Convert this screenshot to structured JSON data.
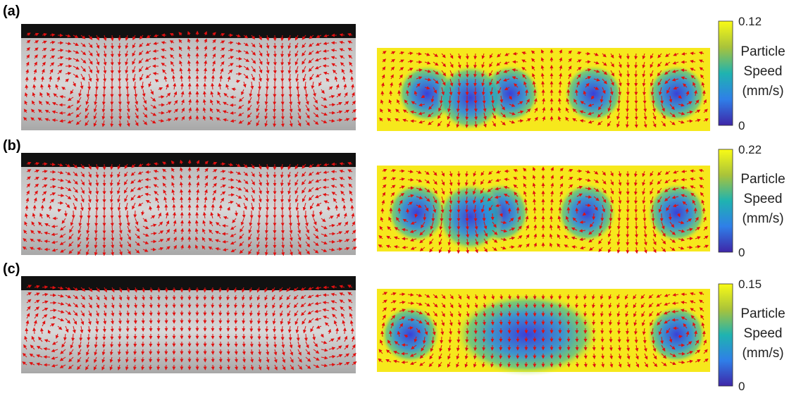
{
  "panels": [
    {
      "label": "(a)",
      "colorbar": {
        "max": 0.12,
        "min": 0,
        "title": [
          "Particle",
          "Speed",
          "(mm/s)"
        ]
      }
    },
    {
      "label": "(b)",
      "colorbar": {
        "max": 0.22,
        "min": 0,
        "title": [
          "Particle",
          "Speed",
          "(mm/s)"
        ]
      }
    },
    {
      "label": "(c)",
      "colorbar": {
        "max": 0.15,
        "min": 0,
        "title": [
          "Particle",
          "Speed",
          "(mm/s)"
        ]
      }
    }
  ]
}
